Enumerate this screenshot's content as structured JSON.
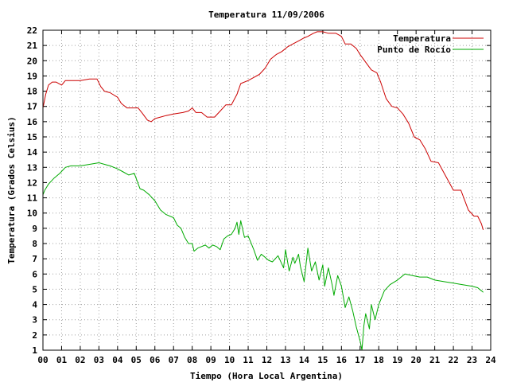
{
  "chart_data": {
    "type": "line",
    "title": "Temperatura 11/09/2006",
    "xlabel": "Tiempo (Hora Local Argentina)",
    "ylabel": "Temperatura (Grados Celsius)",
    "xlim": [
      0,
      24
    ],
    "ylim": [
      1,
      22
    ],
    "x_ticks": [
      "00",
      "01",
      "02",
      "03",
      "04",
      "05",
      "06",
      "07",
      "08",
      "09",
      "10",
      "11",
      "12",
      "13",
      "14",
      "15",
      "16",
      "17",
      "18",
      "19",
      "20",
      "21",
      "22",
      "23",
      "24"
    ],
    "y_ticks": [
      1,
      2,
      3,
      4,
      5,
      6,
      7,
      8,
      9,
      10,
      11,
      12,
      13,
      14,
      15,
      16,
      17,
      18,
      19,
      20,
      21,
      22
    ],
    "grid": true,
    "legend_position": "top-right",
    "series": [
      {
        "name": "Temperatura",
        "color": "#cc0000",
        "x": [
          0,
          0.15,
          0.3,
          0.5,
          0.7,
          1.0,
          1.2,
          1.5,
          2.0,
          2.5,
          2.9,
          3.1,
          3.3,
          3.6,
          4.0,
          4.2,
          4.5,
          4.8,
          5.1,
          5.3,
          5.6,
          5.8,
          6.0,
          6.3,
          6.6,
          7.0,
          7.5,
          7.8,
          8.0,
          8.2,
          8.5,
          8.8,
          9.2,
          9.5,
          9.8,
          10.1,
          10.4,
          10.6,
          11.0,
          11.3,
          11.6,
          11.9,
          12.2,
          12.5,
          12.8,
          13.1,
          13.4,
          13.7,
          14.0,
          14.2,
          14.5,
          14.7,
          15.0,
          15.3,
          15.7,
          16.0,
          16.2,
          16.5,
          16.8,
          17.0,
          17.3,
          17.6,
          17.9,
          18.1,
          18.4,
          18.7,
          19.0,
          19.3,
          19.6,
          19.9,
          20.2,
          20.5,
          20.8,
          21.2,
          21.6,
          22.0,
          22.4,
          22.8,
          23.1,
          23.3,
          23.5,
          23.6
        ],
        "y": [
          16.9,
          17.8,
          18.4,
          18.6,
          18.6,
          18.4,
          18.7,
          18.7,
          18.7,
          18.8,
          18.8,
          18.3,
          18.0,
          17.9,
          17.6,
          17.2,
          16.9,
          16.9,
          16.9,
          16.6,
          16.1,
          16.0,
          16.2,
          16.3,
          16.4,
          16.5,
          16.6,
          16.7,
          16.9,
          16.6,
          16.6,
          16.3,
          16.3,
          16.7,
          17.1,
          17.1,
          17.8,
          18.5,
          18.7,
          18.9,
          19.1,
          19.5,
          20.1,
          20.4,
          20.6,
          20.9,
          21.1,
          21.3,
          21.5,
          21.6,
          21.8,
          21.9,
          21.9,
          21.8,
          21.8,
          21.6,
          21.1,
          21.1,
          20.8,
          20.4,
          19.9,
          19.4,
          19.2,
          18.6,
          17.5,
          17.0,
          16.9,
          16.5,
          15.9,
          15.0,
          14.8,
          14.2,
          13.4,
          13.3,
          12.4,
          11.5,
          11.5,
          10.2,
          9.8,
          9.8,
          9.3,
          8.9
        ]
      },
      {
        "name": "Punto de Rocío",
        "color": "#00aa00",
        "x": [
          0,
          0.1,
          0.3,
          0.6,
          0.9,
          1.2,
          1.5,
          2.0,
          2.5,
          3.0,
          3.3,
          3.6,
          4.0,
          4.3,
          4.6,
          4.9,
          5.2,
          5.4,
          5.7,
          6.0,
          6.3,
          6.6,
          7.0,
          7.2,
          7.4,
          7.6,
          7.8,
          8.0,
          8.1,
          8.3,
          8.5,
          8.7,
          8.9,
          9.1,
          9.3,
          9.5,
          9.7,
          9.9,
          10.1,
          10.3,
          10.4,
          10.5,
          10.6,
          10.8,
          11.0,
          11.1,
          11.3,
          11.5,
          11.7,
          11.9,
          12.1,
          12.3,
          12.6,
          12.9,
          13.0,
          13.2,
          13.4,
          13.5,
          13.7,
          13.8,
          14.0,
          14.2,
          14.4,
          14.6,
          14.8,
          15.0,
          15.1,
          15.3,
          15.5,
          15.6,
          15.8,
          16.0,
          16.2,
          16.4,
          16.6,
          16.8,
          17.0,
          17.1,
          17.2,
          17.3,
          17.5,
          17.6,
          17.8,
          18.0,
          18.3,
          18.6,
          19.0,
          19.4,
          19.8,
          20.2,
          20.6,
          21.0,
          21.5,
          22.0,
          22.5,
          23.0,
          23.3,
          23.5,
          23.6
        ],
        "y": [
          11.2,
          11.5,
          11.9,
          12.3,
          12.6,
          13.0,
          13.1,
          13.1,
          13.2,
          13.3,
          13.2,
          13.1,
          12.9,
          12.7,
          12.5,
          12.6,
          11.6,
          11.5,
          11.2,
          10.8,
          10.2,
          9.9,
          9.7,
          9.2,
          9.0,
          8.4,
          8.0,
          8.0,
          7.5,
          7.7,
          7.8,
          7.9,
          7.7,
          7.9,
          7.8,
          7.6,
          8.3,
          8.5,
          8.6,
          9.0,
          9.4,
          8.6,
          9.5,
          8.4,
          8.5,
          8.2,
          7.6,
          6.9,
          7.3,
          7.1,
          6.9,
          6.8,
          7.2,
          6.4,
          7.6,
          6.2,
          7.1,
          6.7,
          7.3,
          6.5,
          5.5,
          7.7,
          6.2,
          6.8,
          5.6,
          6.6,
          5.2,
          6.4,
          5.3,
          4.6,
          5.9,
          5.2,
          3.8,
          4.5,
          3.6,
          2.5,
          1.6,
          1.0,
          2.6,
          3.4,
          2.4,
          4.0,
          3.0,
          4.0,
          4.9,
          5.3,
          5.6,
          6.0,
          5.9,
          5.8,
          5.8,
          5.6,
          5.5,
          5.4,
          5.3,
          5.2,
          5.1,
          4.9,
          4.8
        ]
      }
    ]
  }
}
